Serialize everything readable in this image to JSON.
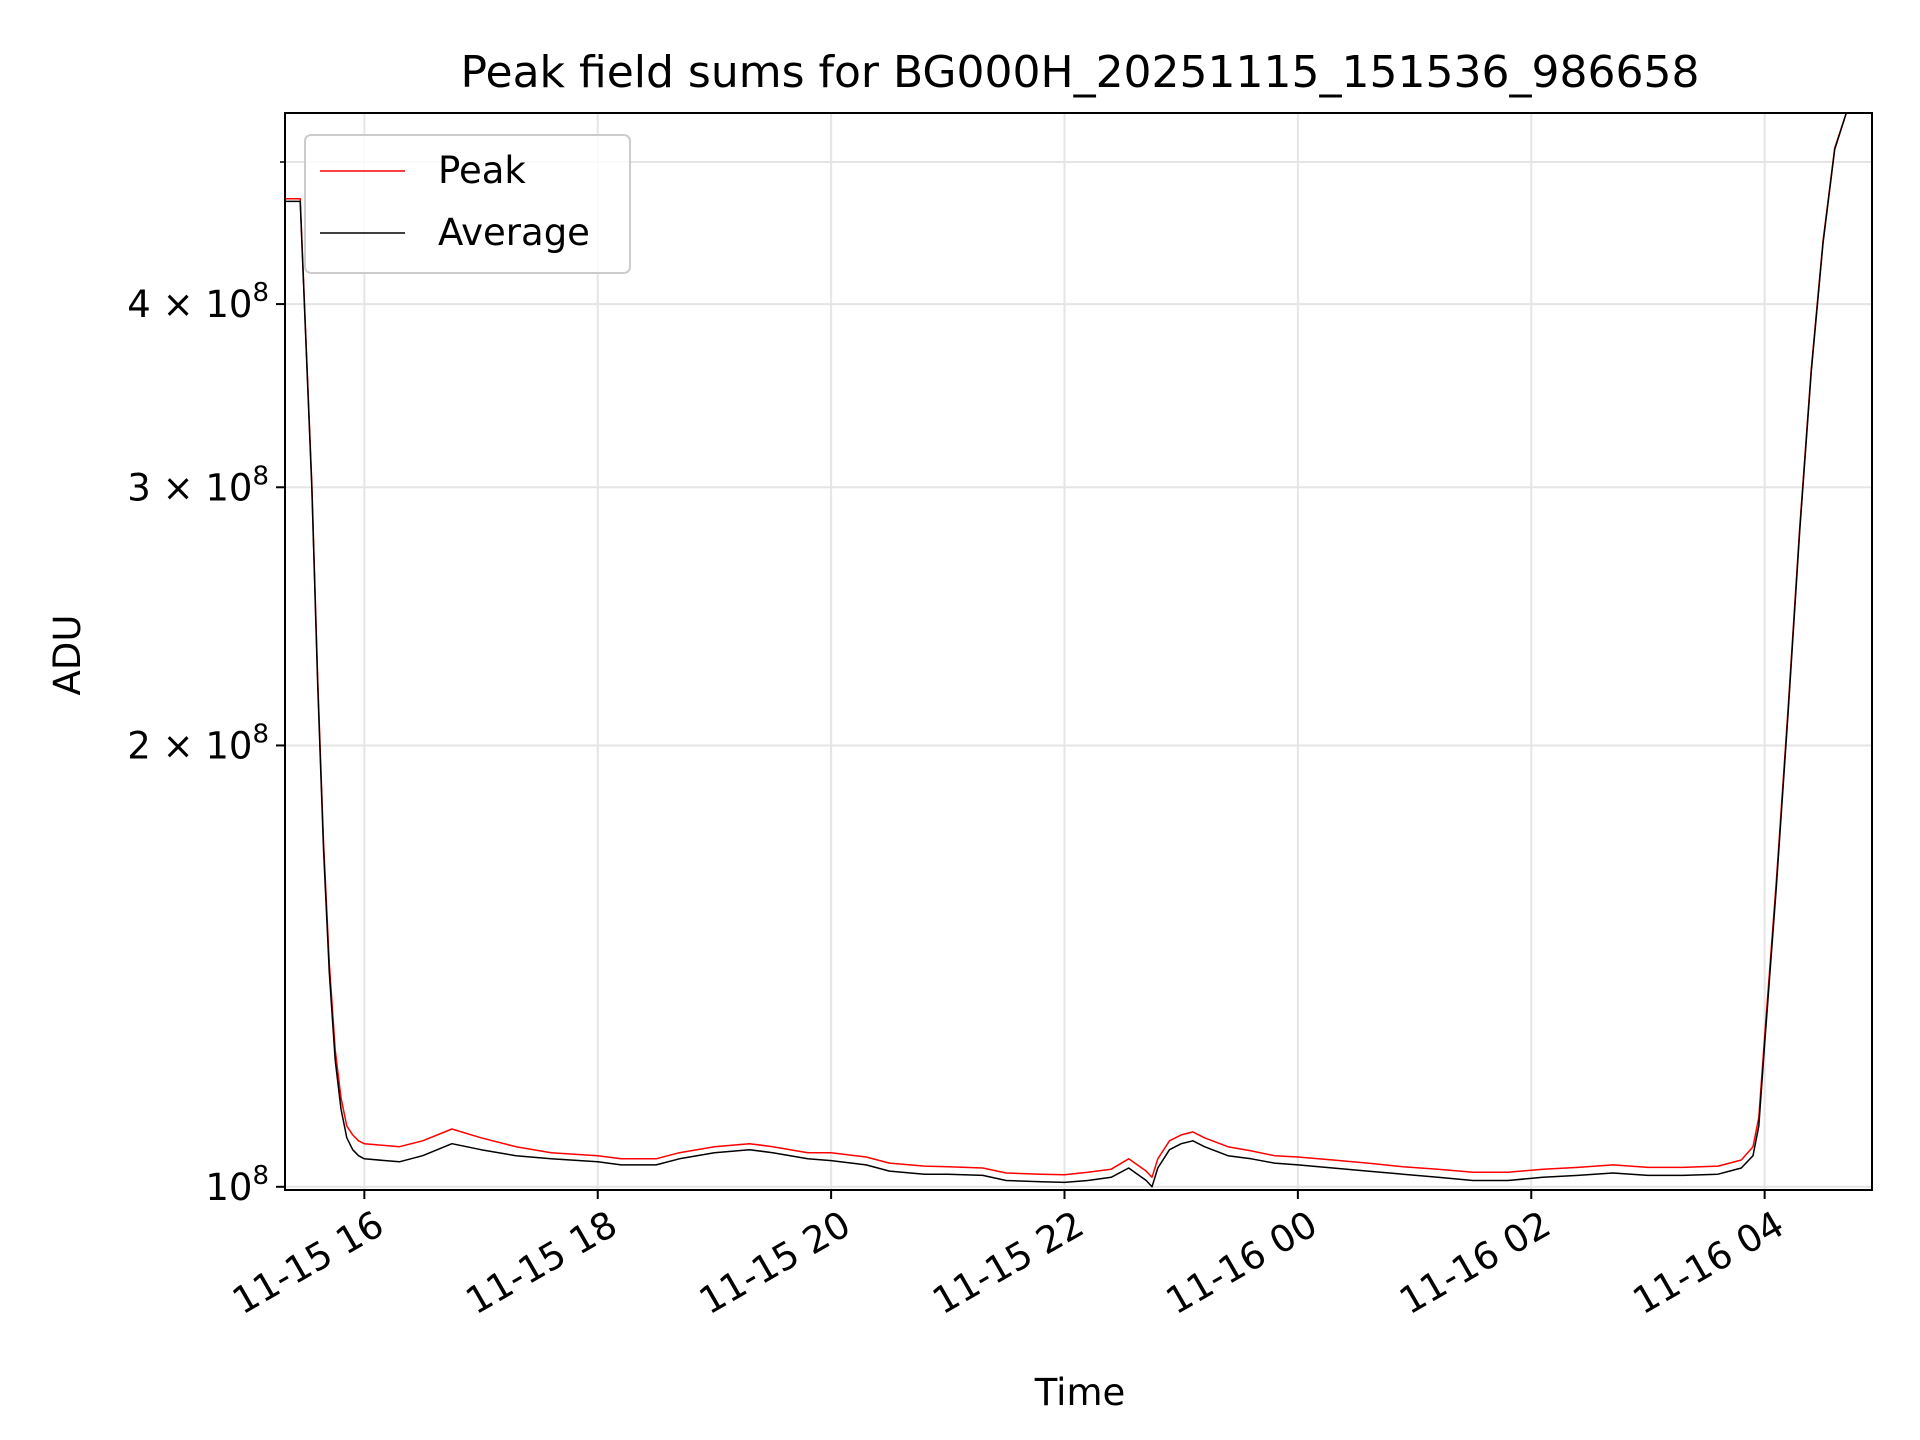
{
  "chart_data": {
    "type": "line",
    "title": "Peak field sums for BG000H_20251115_151536_986658",
    "xlabel": "Time",
    "ylabel": "ADU",
    "yscale": "log",
    "grid": true,
    "legend_location": "upper-left",
    "xlim_hours": [
      15.32,
      28.92
    ],
    "ylim": [
      99500000,
      540000000
    ],
    "x_ticks": [
      {
        "hour": 16,
        "label": "11-15 16"
      },
      {
        "hour": 18,
        "label": "11-15 18"
      },
      {
        "hour": 20,
        "label": "11-15 20"
      },
      {
        "hour": 22,
        "label": "11-15 22"
      },
      {
        "hour": 24,
        "label": "11-16 00"
      },
      {
        "hour": 26,
        "label": "11-16 02"
      },
      {
        "hour": 28,
        "label": "11-16 04"
      }
    ],
    "y_ticks": [
      {
        "value": 100000000,
        "base": "10",
        "exp": "8"
      },
      {
        "value": 200000000,
        "base": "2 × 10",
        "exp": "8"
      },
      {
        "value": 300000000,
        "base": "3 × 10",
        "exp": "8"
      },
      {
        "value": 400000000,
        "base": "4 × 10",
        "exp": "8"
      }
    ],
    "y_minor_ticks": [
      500000000
    ],
    "series": [
      {
        "name": "Average",
        "color": "#000000",
        "x": [
          15.32,
          15.45,
          15.55,
          15.6,
          15.65,
          15.7,
          15.75,
          15.8,
          15.85,
          15.9,
          15.95,
          16.0,
          16.3,
          16.5,
          16.75,
          17.0,
          17.3,
          17.6,
          18.0,
          18.2,
          18.5,
          18.7,
          19.0,
          19.3,
          19.5,
          19.8,
          20.0,
          20.3,
          20.5,
          20.8,
          21.0,
          21.3,
          21.5,
          21.8,
          22.0,
          22.2,
          22.4,
          22.55,
          22.7,
          22.75,
          22.8,
          22.9,
          23.0,
          23.1,
          23.2,
          23.4,
          23.6,
          23.8,
          24.0,
          24.3,
          24.6,
          24.9,
          25.2,
          25.5,
          25.8,
          26.1,
          26.4,
          26.7,
          27.0,
          27.3,
          27.6,
          27.7,
          27.8,
          27.9,
          27.95,
          28.0,
          28.1,
          28.2,
          28.3,
          28.4,
          28.5,
          28.6,
          28.7,
          28.8,
          28.92
        ],
        "values": [
          470000000,
          470000000,
          300000000,
          220000000,
          170000000,
          140000000,
          122000000,
          113000000,
          108000000,
          106000000,
          105000000,
          104500000,
          104000000,
          105000000,
          107000000,
          106000000,
          105000000,
          104500000,
          104000000,
          103500000,
          103500000,
          104500000,
          105500000,
          106000000,
          105500000,
          104500000,
          104200000,
          103500000,
          102500000,
          102000000,
          102000000,
          101800000,
          101000000,
          100800000,
          100700000,
          101000000,
          101500000,
          103000000,
          101000000,
          100000000,
          103000000,
          106000000,
          107000000,
          107500000,
          106500000,
          105000000,
          104500000,
          103800000,
          103500000,
          103000000,
          102500000,
          102000000,
          101500000,
          101000000,
          101000000,
          101500000,
          101800000,
          102200000,
          101800000,
          101800000,
          102000000,
          102500000,
          103000000,
          105000000,
          110000000,
          125000000,
          160000000,
          210000000,
          280000000,
          360000000,
          440000000,
          510000000,
          540000000,
          540000000,
          540000000
        ]
      },
      {
        "name": "Peak",
        "color": "#ff0000",
        "x": [
          15.32,
          15.45,
          15.55,
          15.6,
          15.65,
          15.7,
          15.75,
          15.8,
          15.85,
          15.9,
          15.95,
          16.0,
          16.3,
          16.5,
          16.75,
          17.0,
          17.3,
          17.6,
          18.0,
          18.2,
          18.5,
          18.7,
          19.0,
          19.3,
          19.5,
          19.8,
          20.0,
          20.3,
          20.5,
          20.8,
          21.0,
          21.3,
          21.5,
          21.8,
          22.0,
          22.2,
          22.4,
          22.55,
          22.7,
          22.75,
          22.8,
          22.9,
          23.0,
          23.1,
          23.2,
          23.4,
          23.6,
          23.8,
          24.0,
          24.3,
          24.6,
          24.9,
          25.2,
          25.5,
          25.8,
          26.1,
          26.4,
          26.7,
          27.0,
          27.3,
          27.6,
          27.7,
          27.8,
          27.9,
          27.95,
          28.0,
          28.1,
          28.2,
          28.3,
          28.4,
          28.5,
          28.6,
          28.7,
          28.8,
          28.92
        ],
        "values": [
          472000000,
          472000000,
          302000000,
          222000000,
          172000000,
          142000000,
          124000000,
          115000000,
          110000000,
          108500000,
          107500000,
          107000000,
          106500000,
          107500000,
          109500000,
          108000000,
          106500000,
          105500000,
          105000000,
          104500000,
          104500000,
          105500000,
          106500000,
          107000000,
          106500000,
          105500000,
          105500000,
          104800000,
          103800000,
          103300000,
          103200000,
          103000000,
          102200000,
          102000000,
          101900000,
          102300000,
          102800000,
          104500000,
          102500000,
          101500000,
          104500000,
          107500000,
          108500000,
          109000000,
          108000000,
          106500000,
          105800000,
          105000000,
          104800000,
          104300000,
          103800000,
          103200000,
          102800000,
          102300000,
          102300000,
          102800000,
          103100000,
          103500000,
          103100000,
          103100000,
          103300000,
          103800000,
          104300000,
          106500000,
          111500000,
          126500000,
          161500000,
          211500000,
          281500000,
          361500000,
          441500000,
          511000000,
          541000000,
          541000000,
          541000000
        ]
      }
    ],
    "legend": [
      {
        "label": "Peak",
        "color": "#ff0000"
      },
      {
        "label": "Average",
        "color": "#000000"
      }
    ]
  }
}
